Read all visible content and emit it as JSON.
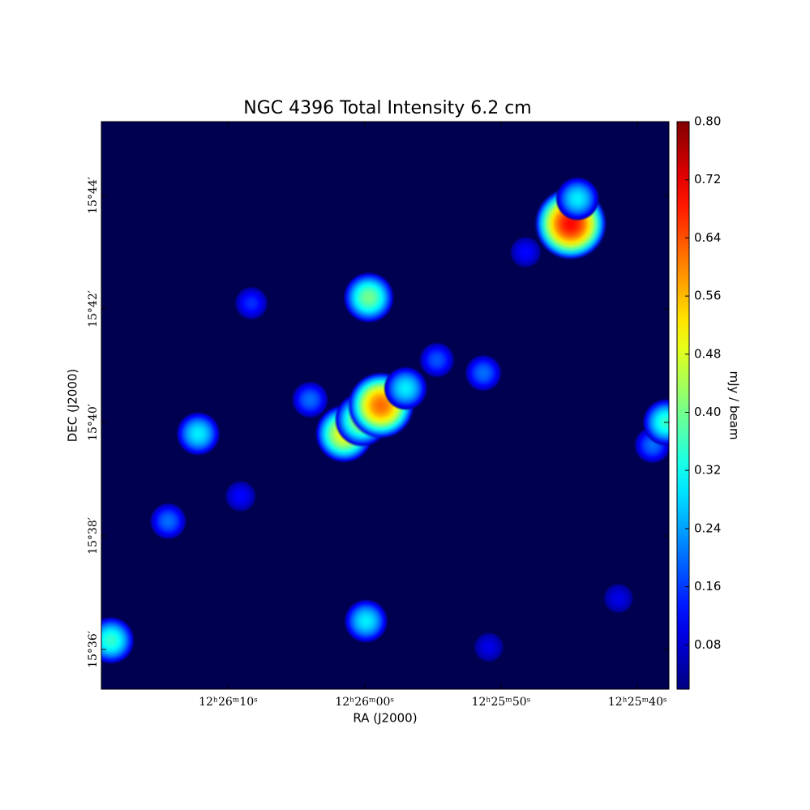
{
  "chart_data": {
    "type": "image",
    "title": "NGC 4396 Total Intensity 6.2 cm",
    "x_label": "RA (J2000)",
    "y_label": "DEC (J2000)",
    "colorbar_label": "mJy / beam",
    "colormap": "jet",
    "xlim": [
      79.3,
      37.7
    ],
    "ylim": [
      35.3,
      45.3
    ],
    "clim": [
      0.019,
      0.8
    ],
    "xticks": [
      {
        "value": 70,
        "label": "12ʰ26ᵐ10ˢ"
      },
      {
        "value": 60,
        "label": "12ʰ26ᵐ00ˢ"
      },
      {
        "value": 50,
        "label": "12ʰ25ᵐ50ˢ"
      },
      {
        "value": 40,
        "label": "12ʰ25ᵐ40ˢ"
      }
    ],
    "yticks": [
      {
        "value": 36,
        "label": "15°36′"
      },
      {
        "value": 38,
        "label": "15°38′"
      },
      {
        "value": 40,
        "label": "15°40′"
      },
      {
        "value": 42,
        "label": "15°42′"
      },
      {
        "value": 44,
        "label": "15°44′"
      }
    ],
    "cticks": [
      0.08,
      0.16,
      0.24,
      0.32,
      {
        "value": 0.4,
        "label": "0.40"
      },
      0.48,
      0.56,
      0.64,
      0.72,
      {
        "value": 0.8,
        "label": "0.80"
      }
    ],
    "sources": [
      {
        "ra": 61.5,
        "dec": 39.8,
        "peak": 0.5
      },
      {
        "ra": 60.2,
        "dec": 40.05,
        "peak": 0.45
      },
      {
        "ra": 58.8,
        "dec": 40.3,
        "peak": 0.62
      },
      {
        "ra": 57.0,
        "dec": 40.6,
        "peak": 0.3
      },
      {
        "ra": 54.7,
        "dec": 41.1,
        "peak": 0.18
      },
      {
        "ra": 64.0,
        "dec": 40.4,
        "peak": 0.2
      },
      {
        "ra": 44.9,
        "dec": 43.5,
        "peak": 0.7
      },
      {
        "ra": 44.4,
        "dec": 43.94,
        "peak": 0.3
      },
      {
        "ra": 59.7,
        "dec": 42.2,
        "peak": 0.4
      },
      {
        "ra": 72.2,
        "dec": 39.8,
        "peak": 0.3
      },
      {
        "ra": 68.3,
        "dec": 42.1,
        "peak": 0.15
      },
      {
        "ra": 51.3,
        "dec": 40.87,
        "peak": 0.2
      },
      {
        "ra": 59.9,
        "dec": 36.5,
        "peak": 0.3
      },
      {
        "ra": 74.4,
        "dec": 38.26,
        "peak": 0.2
      },
      {
        "ra": 78.6,
        "dec": 36.16,
        "peak": 0.35
      },
      {
        "ra": 38.9,
        "dec": 39.6,
        "peak": 0.2
      },
      {
        "ra": 37.9,
        "dec": 40.0,
        "peak": 0.35
      },
      {
        "ra": 69.1,
        "dec": 38.7,
        "peak": 0.12
      },
      {
        "ra": 48.2,
        "dec": 43.0,
        "peak": 0.12
      },
      {
        "ra": 41.4,
        "dec": 36.9,
        "peak": 0.1
      },
      {
        "ra": 50.9,
        "dec": 36.04,
        "peak": 0.1
      }
    ]
  }
}
